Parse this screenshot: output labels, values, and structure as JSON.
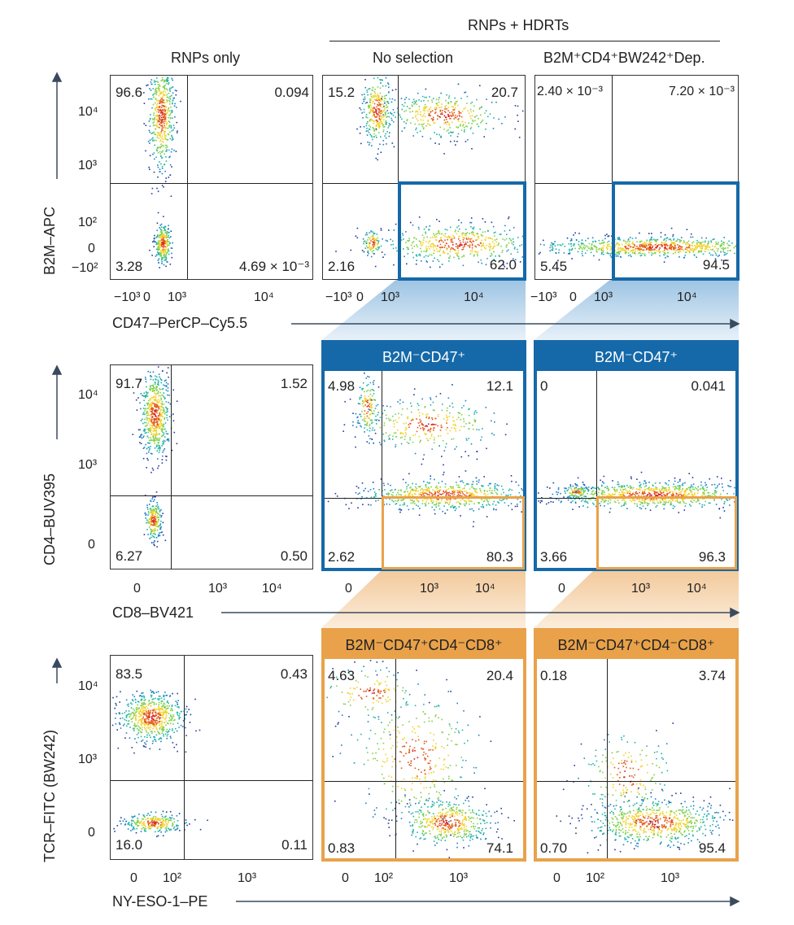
{
  "header": {
    "group_label": "RNPs + HDRTs",
    "col1": "RNPs only",
    "col2": "No selection",
    "col3": "B2M⁺CD4⁺BW242⁺Dep."
  },
  "row1": {
    "ylabel": "B2M–APC",
    "xlabel": "CD47–PerCP–Cy5.5",
    "yticks": [
      "10⁴",
      "10³",
      "10²",
      "0",
      "−10²"
    ],
    "xticks": [
      "−10³",
      "0",
      "10³",
      "10⁴"
    ],
    "p1": {
      "tl": "96.6",
      "tr": "0.094",
      "bl": "3.28",
      "br": "4.69 × 10⁻³"
    },
    "p2": {
      "tl": "15.2",
      "tr": "20.7",
      "bl": "2.16",
      "br": "62.0"
    },
    "p3": {
      "tl": "2.40 × 10⁻³",
      "tr": "7.20 × 10⁻³",
      "bl": "5.45",
      "br": "94.5"
    }
  },
  "row2": {
    "ylabel": "CD4–BUV395",
    "xlabel": "CD8–BV421",
    "gate_label": "B2M⁻CD47⁺",
    "yticks": [
      "10⁴",
      "10³",
      "0"
    ],
    "xticks": [
      "0",
      "10³",
      "10⁴"
    ],
    "p1": {
      "tl": "91.7",
      "tr": "1.52",
      "bl": "6.27",
      "br": "0.50"
    },
    "p2": {
      "tl": "4.98",
      "tr": "12.1",
      "bl": "2.62",
      "br": "80.3"
    },
    "p3": {
      "tl": "0",
      "tr": "0.041",
      "bl": "3.66",
      "br": "96.3"
    }
  },
  "row3": {
    "ylabel": "TCR–FITC (BW242)",
    "xlabel": "NY-ESO-1–PE",
    "gate_label": "B2M⁻CD47⁺CD4⁻CD8⁺",
    "yticks": [
      "10⁴",
      "10³",
      "0"
    ],
    "xticks": [
      "0",
      "10²",
      "10³"
    ],
    "p1": {
      "tl": "83.5",
      "tr": "0.43",
      "bl": "16.0",
      "br": "0.11"
    },
    "p2": {
      "tl": "4.63",
      "tr": "20.4",
      "bl": "0.83",
      "br": "74.1"
    },
    "p3": {
      "tl": "0.18",
      "tr": "3.74",
      "bl": "0.70",
      "br": "95.4"
    }
  },
  "colors": {
    "blue_gate": "#1569a8",
    "orange_gate": "#e9a24a",
    "axis": "#3a4a5e"
  },
  "chart_data": [
    {
      "type": "scatter",
      "title": "RNPs only",
      "xlabel": "CD47–PerCP–Cy5.5",
      "ylabel": "B2M–APC",
      "quadrants": {
        "upper_left": 96.6,
        "upper_right": 0.094,
        "lower_left": 3.28,
        "lower_right": 0.00469
      }
    },
    {
      "type": "scatter",
      "title": "No selection",
      "xlabel": "CD47–PerCP–Cy5.5",
      "ylabel": "B2M–APC",
      "quadrants": {
        "upper_left": 15.2,
        "upper_right": 20.7,
        "lower_left": 2.16,
        "lower_right": 62.0
      }
    },
    {
      "type": "scatter",
      "title": "B2M⁺CD4⁺BW242⁺Dep.",
      "xlabel": "CD47–PerCP–Cy5.5",
      "ylabel": "B2M–APC",
      "quadrants": {
        "upper_left": 0.0024,
        "upper_right": 0.0072,
        "lower_left": 5.45,
        "lower_right": 94.5
      }
    },
    {
      "type": "scatter",
      "title": "RNPs only",
      "xlabel": "CD8–BV421",
      "ylabel": "CD4–BUV395",
      "quadrants": {
        "upper_left": 91.7,
        "upper_right": 1.52,
        "lower_left": 6.27,
        "lower_right": 0.5
      }
    },
    {
      "type": "scatter",
      "title": "B2M⁻CD47⁺ (No selection)",
      "xlabel": "CD8–BV421",
      "ylabel": "CD4–BUV395",
      "quadrants": {
        "upper_left": 4.98,
        "upper_right": 12.1,
        "lower_left": 2.62,
        "lower_right": 80.3
      }
    },
    {
      "type": "scatter",
      "title": "B2M⁻CD47⁺ (Dep.)",
      "xlabel": "CD8–BV421",
      "ylabel": "CD4–BUV395",
      "quadrants": {
        "upper_left": 0,
        "upper_right": 0.041,
        "lower_left": 3.66,
        "lower_right": 96.3
      }
    },
    {
      "type": "scatter",
      "title": "RNPs only",
      "xlabel": "NY-ESO-1–PE",
      "ylabel": "TCR–FITC (BW242)",
      "quadrants": {
        "upper_left": 83.5,
        "upper_right": 0.43,
        "lower_left": 16.0,
        "lower_right": 0.11
      }
    },
    {
      "type": "scatter",
      "title": "B2M⁻CD47⁺CD4⁻CD8⁺ (No selection)",
      "xlabel": "NY-ESO-1–PE",
      "ylabel": "TCR–FITC (BW242)",
      "quadrants": {
        "upper_left": 4.63,
        "upper_right": 20.4,
        "lower_left": 0.83,
        "lower_right": 74.1
      }
    },
    {
      "type": "scatter",
      "title": "B2M⁻CD47⁺CD4⁻CD8⁺ (Dep.)",
      "xlabel": "NY-ESO-1–PE",
      "ylabel": "TCR–FITC (BW242)",
      "quadrants": {
        "upper_left": 0.18,
        "upper_right": 3.74,
        "lower_left": 0.7,
        "lower_right": 95.4
      }
    }
  ]
}
